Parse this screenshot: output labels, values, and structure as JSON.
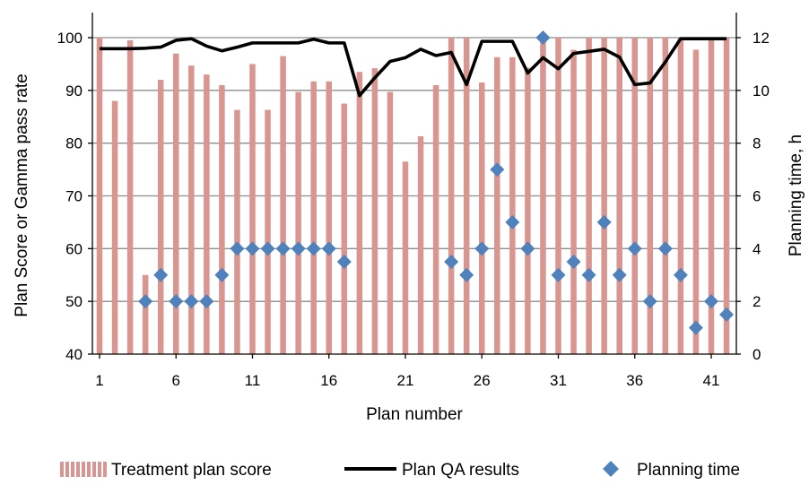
{
  "chart_data": {
    "type": "bar",
    "xlabel": "Plan number",
    "ylabel_left": "Plan Score or Gamma pass rate",
    "ylabel_right": "Planning time, h",
    "ylim_left": [
      40,
      100
    ],
    "yticks_left": [
      "40",
      "50",
      "60",
      "70",
      "80",
      "90",
      "100"
    ],
    "ylim_right": [
      0,
      12
    ],
    "yticks_right": [
      "0",
      "2",
      "4",
      "6",
      "8",
      "10",
      "12"
    ],
    "xticks": [
      "1",
      "6",
      "11",
      "16",
      "21",
      "26",
      "31",
      "36",
      "41"
    ],
    "grid": "horizontal",
    "legend_position": "bottom",
    "x": [
      1,
      2,
      3,
      4,
      5,
      6,
      7,
      8,
      9,
      10,
      11,
      12,
      13,
      14,
      15,
      16,
      17,
      18,
      19,
      20,
      21,
      22,
      23,
      24,
      25,
      26,
      27,
      28,
      29,
      30,
      31,
      32,
      33,
      34,
      35,
      36,
      37,
      38,
      39,
      40,
      41,
      42
    ],
    "series": [
      {
        "name": "Treatment plan score",
        "kind": "bar",
        "axis": "left",
        "color": "#d9958f",
        "values": [
          100,
          88,
          99.5,
          55,
          92,
          97,
          94.7,
          93,
          91,
          86.3,
          95,
          86.3,
          96.5,
          89.7,
          91.7,
          91.7,
          87.5,
          93.5,
          94.2,
          89.7,
          76.5,
          81.3,
          91,
          100,
          100,
          91.5,
          96.3,
          96.3,
          94.3,
          100,
          100,
          97.7,
          100,
          100,
          100,
          100,
          100,
          100,
          100,
          97.7,
          100,
          100
        ]
      },
      {
        "name": "Plan QA results",
        "kind": "line",
        "axis": "left",
        "color": "#000000",
        "values": [
          97.9,
          97.9,
          97.9,
          98.0,
          98.2,
          99.5,
          99.8,
          98.4,
          97.5,
          98.2,
          99.0,
          99.0,
          99.0,
          99.0,
          99.7,
          99.0,
          99.0,
          89.0,
          92.4,
          95.5,
          96.2,
          97.8,
          96.6,
          97.2,
          91.1,
          99.3,
          99.3,
          99.3,
          93.3,
          96.2,
          94.1,
          97.0,
          97.4,
          97.8,
          96.3,
          91.1,
          91.4,
          95.4,
          99.8,
          99.8,
          99.8,
          99.8
        ]
      },
      {
        "name": "Planning time",
        "kind": "scatter",
        "axis": "right",
        "color": "#4f81bd",
        "x": [
          4,
          5,
          6,
          7,
          8,
          9,
          10,
          11,
          12,
          13,
          14,
          15,
          16,
          17,
          24,
          25,
          26,
          27,
          28,
          29,
          30,
          31,
          32,
          33,
          34,
          35,
          36,
          37,
          38,
          39,
          40,
          41,
          42
        ],
        "values": [
          2,
          3,
          2,
          2,
          2,
          3,
          4,
          4,
          4,
          4,
          4,
          4,
          4,
          3.5,
          3.5,
          3,
          4,
          7,
          5,
          4,
          12,
          3,
          3.5,
          3,
          5,
          3,
          4,
          2,
          4,
          3,
          1,
          2,
          1.5
        ]
      }
    ]
  }
}
